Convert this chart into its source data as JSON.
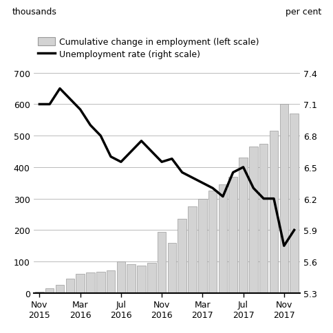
{
  "title_left": "thousands",
  "title_right": "per cent",
  "bar_label": "Cumulative change in employment (left scale)",
  "line_label": "Unemployment rate (right scale)",
  "tick_labels": [
    "Nov\n2015",
    "Mar\n2016",
    "Jul\n2016",
    "Nov\n2016",
    "Mar\n2017",
    "Jul\n2017",
    "Nov\n2017"
  ],
  "tick_positions": [
    0,
    4,
    8,
    12,
    16,
    20,
    24
  ],
  "employment": [
    5,
    15,
    25,
    45,
    60,
    65,
    68,
    72,
    100,
    92,
    88,
    95,
    195,
    160,
    235,
    275,
    300,
    325,
    345,
    370,
    430,
    465,
    475,
    515,
    600,
    570
  ],
  "unemployment": [
    7.1,
    7.1,
    7.25,
    7.15,
    7.05,
    6.9,
    6.8,
    6.6,
    6.55,
    6.65,
    6.75,
    6.65,
    6.55,
    6.58,
    6.45,
    6.4,
    6.35,
    6.3,
    6.22,
    6.45,
    6.5,
    6.3,
    6.2,
    6.2,
    5.75,
    5.9
  ],
  "ylim_left": [
    0,
    700
  ],
  "ylim_right": [
    5.3,
    7.4
  ],
  "yticks_left": [
    0,
    100,
    200,
    300,
    400,
    500,
    600,
    700
  ],
  "yticks_right": [
    5.3,
    5.6,
    5.9,
    6.2,
    6.5,
    6.8,
    7.1,
    7.4
  ],
  "bar_color": "#d3d3d3",
  "bar_edge_color": "#999999",
  "line_color": "#000000",
  "grid_color": "#b0b0b0",
  "background_color": "#ffffff",
  "n_bars": 26,
  "figsize": [
    4.85,
    4.85
  ],
  "dpi": 100
}
